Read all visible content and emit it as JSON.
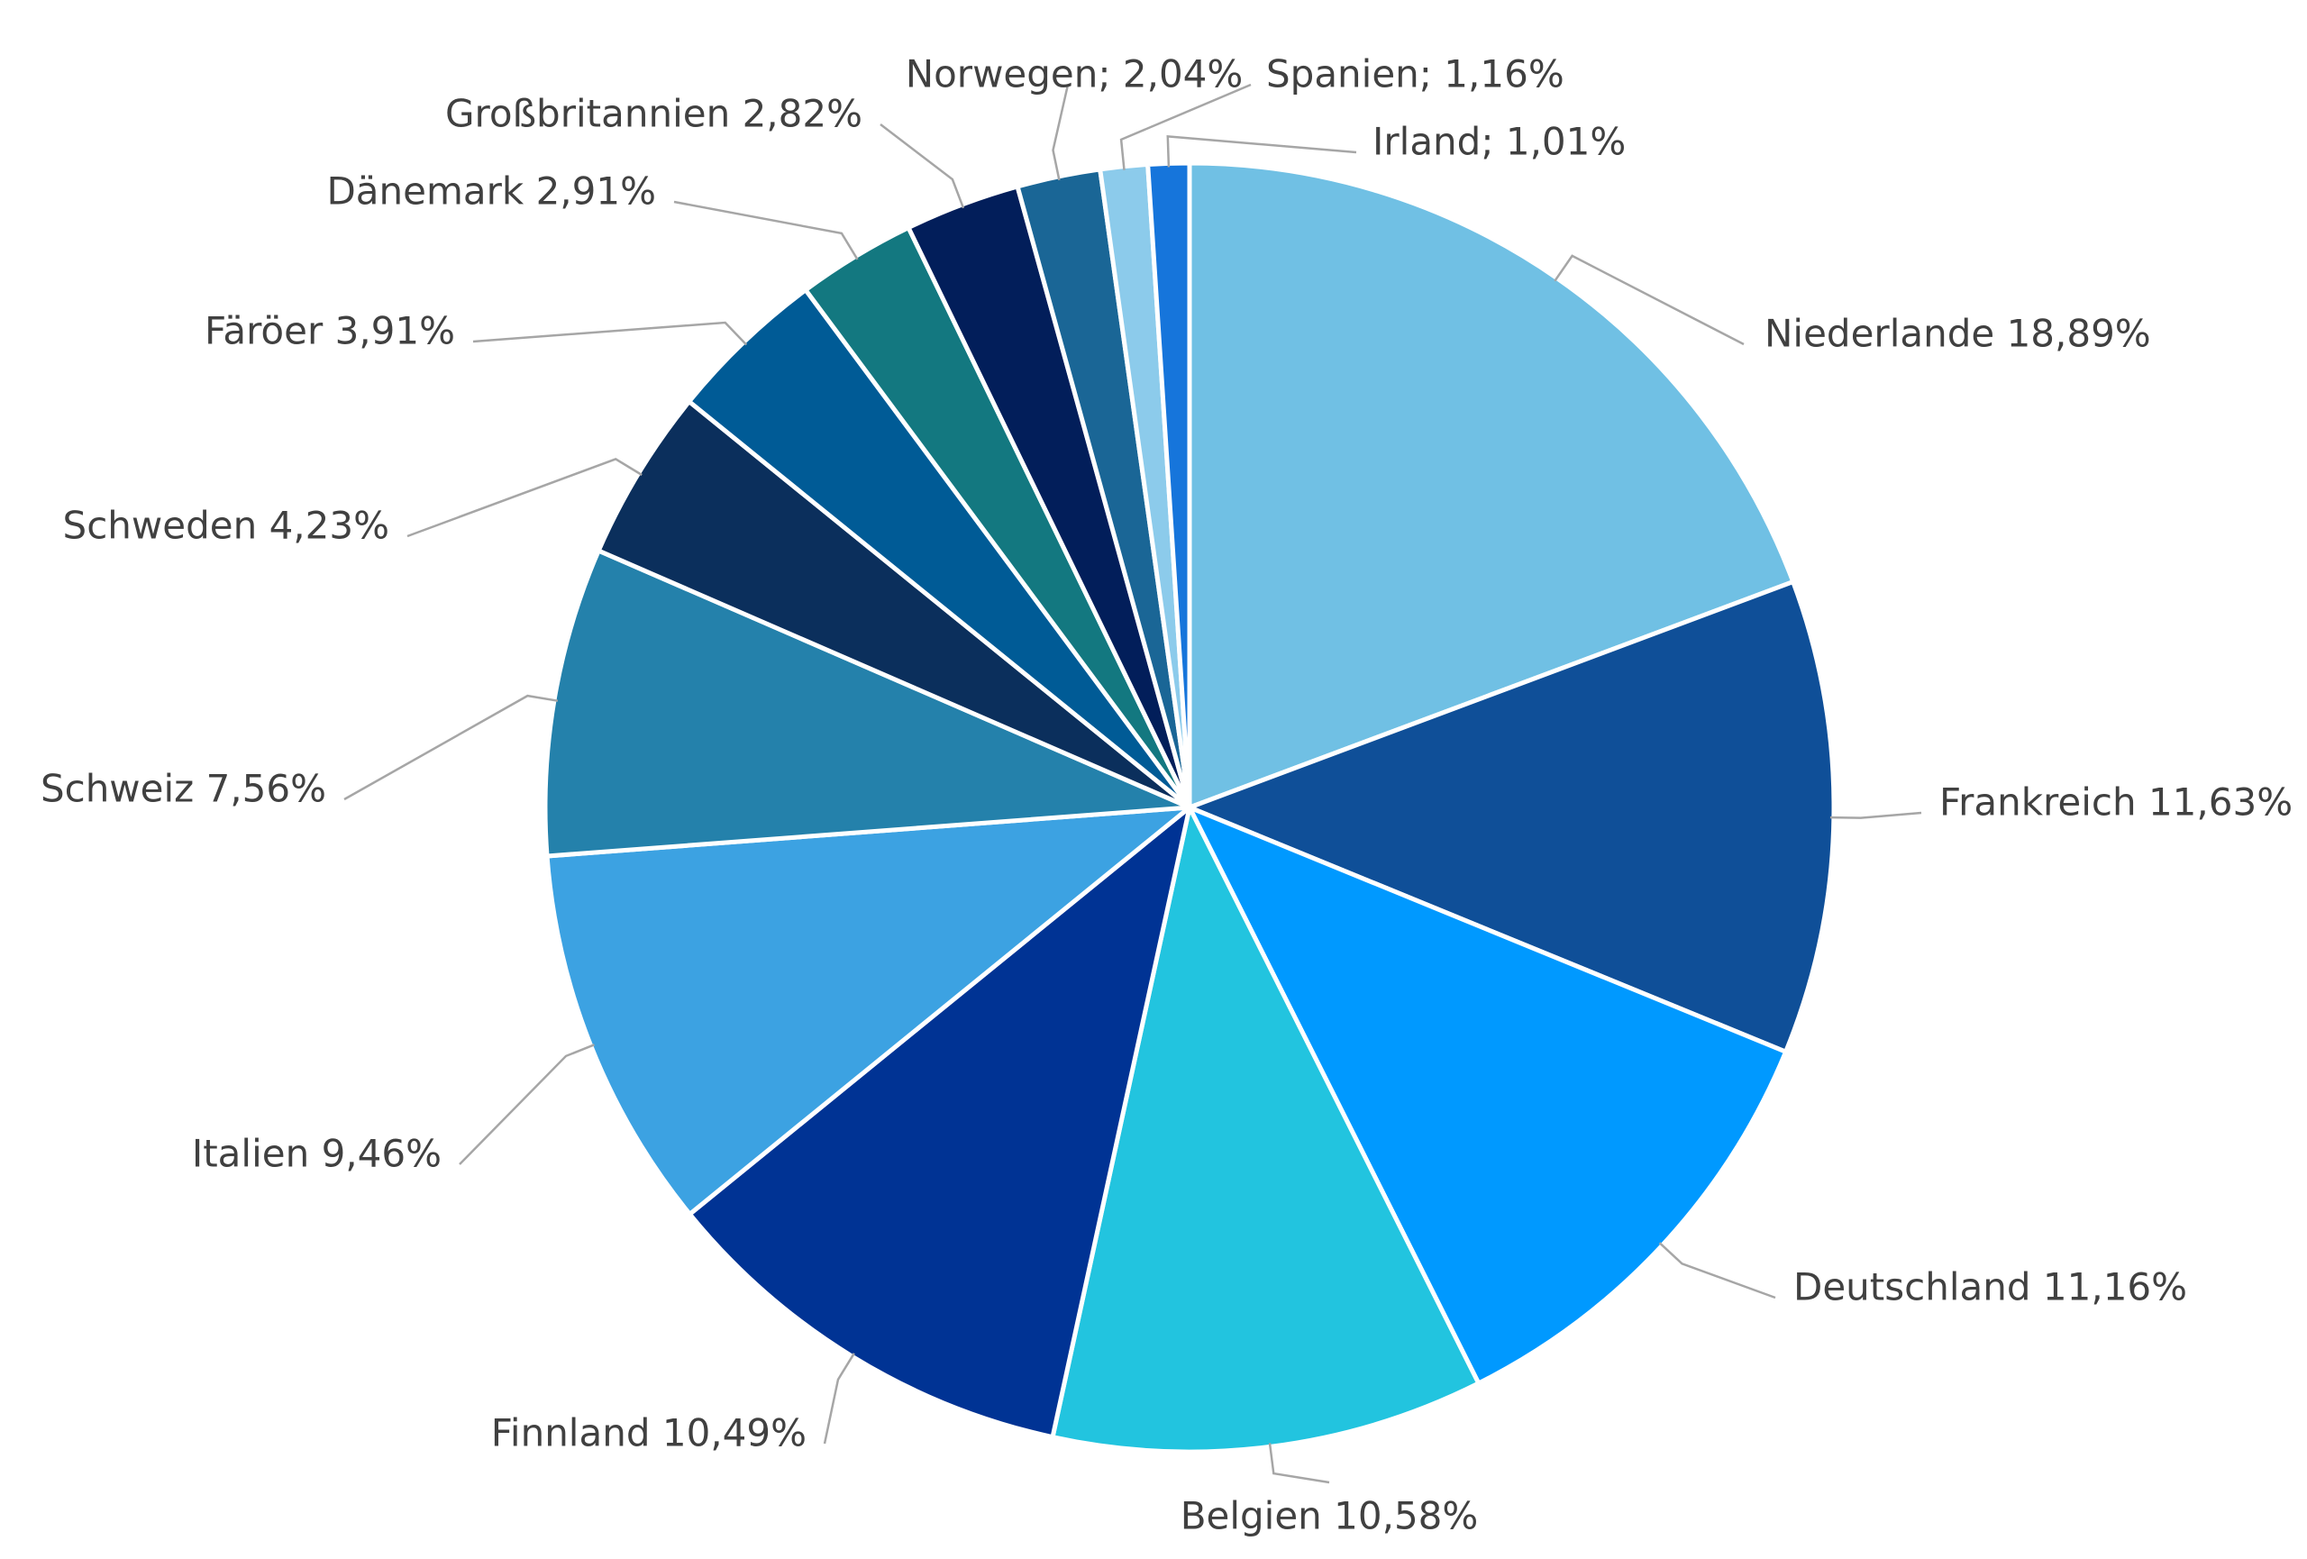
{
  "chart_data": {
    "type": "pie",
    "title": "",
    "start_angle_deg": 0,
    "direction": "clockwise",
    "slices": [
      {
        "name": "Niederlande",
        "value": 18.89,
        "label": "Niederlande 18,89%",
        "color": "#70c0e4"
      },
      {
        "name": "Frankreich",
        "value": 11.63,
        "label": "Frankreich 11,63%",
        "color": "#0f4f98"
      },
      {
        "name": "Deutschland",
        "value": 11.16,
        "label": "Deutschland 11,16%",
        "color": "#0099ff"
      },
      {
        "name": "Belgien",
        "value": 10.58,
        "label": "Belgien 10,58%",
        "color": "#22c4df"
      },
      {
        "name": "Finnland",
        "value": 10.49,
        "label": "Finnland 10,49%",
        "color": "#003394"
      },
      {
        "name": "Italien",
        "value": 9.46,
        "label": "Italien 9,46%",
        "color": "#3ca2e2"
      },
      {
        "name": "Schweiz",
        "value": 7.56,
        "label": "Schweiz 7,56%",
        "color": "#2481ab"
      },
      {
        "name": "Schweden",
        "value": 4.23,
        "label": "Schweden 4,23%",
        "color": "#0b2f5c"
      },
      {
        "name": "Färöer",
        "value": 3.91,
        "label": "Färöer 3,91%",
        "color": "#005b96"
      },
      {
        "name": "Dänemark",
        "value": 2.91,
        "label": "Dänemark 2,91%",
        "color": "#137880"
      },
      {
        "name": "Großbritannien",
        "value": 2.82,
        "label": "Großbritannien 2,82%",
        "color": "#021e5a"
      },
      {
        "name": "Norwegen",
        "value": 2.04,
        "label": "Norwegen; 2,04%",
        "color": "#1a6696"
      },
      {
        "name": "Spanien",
        "value": 1.16,
        "label": "Spanien; 1,16%",
        "color": "#8ccbeb"
      },
      {
        "name": "Irland",
        "value": 1.01,
        "label": "Irland; 1,01%",
        "color": "#1675db"
      }
    ],
    "data_labels": "outside-with-leader-lines",
    "legend": "none"
  }
}
